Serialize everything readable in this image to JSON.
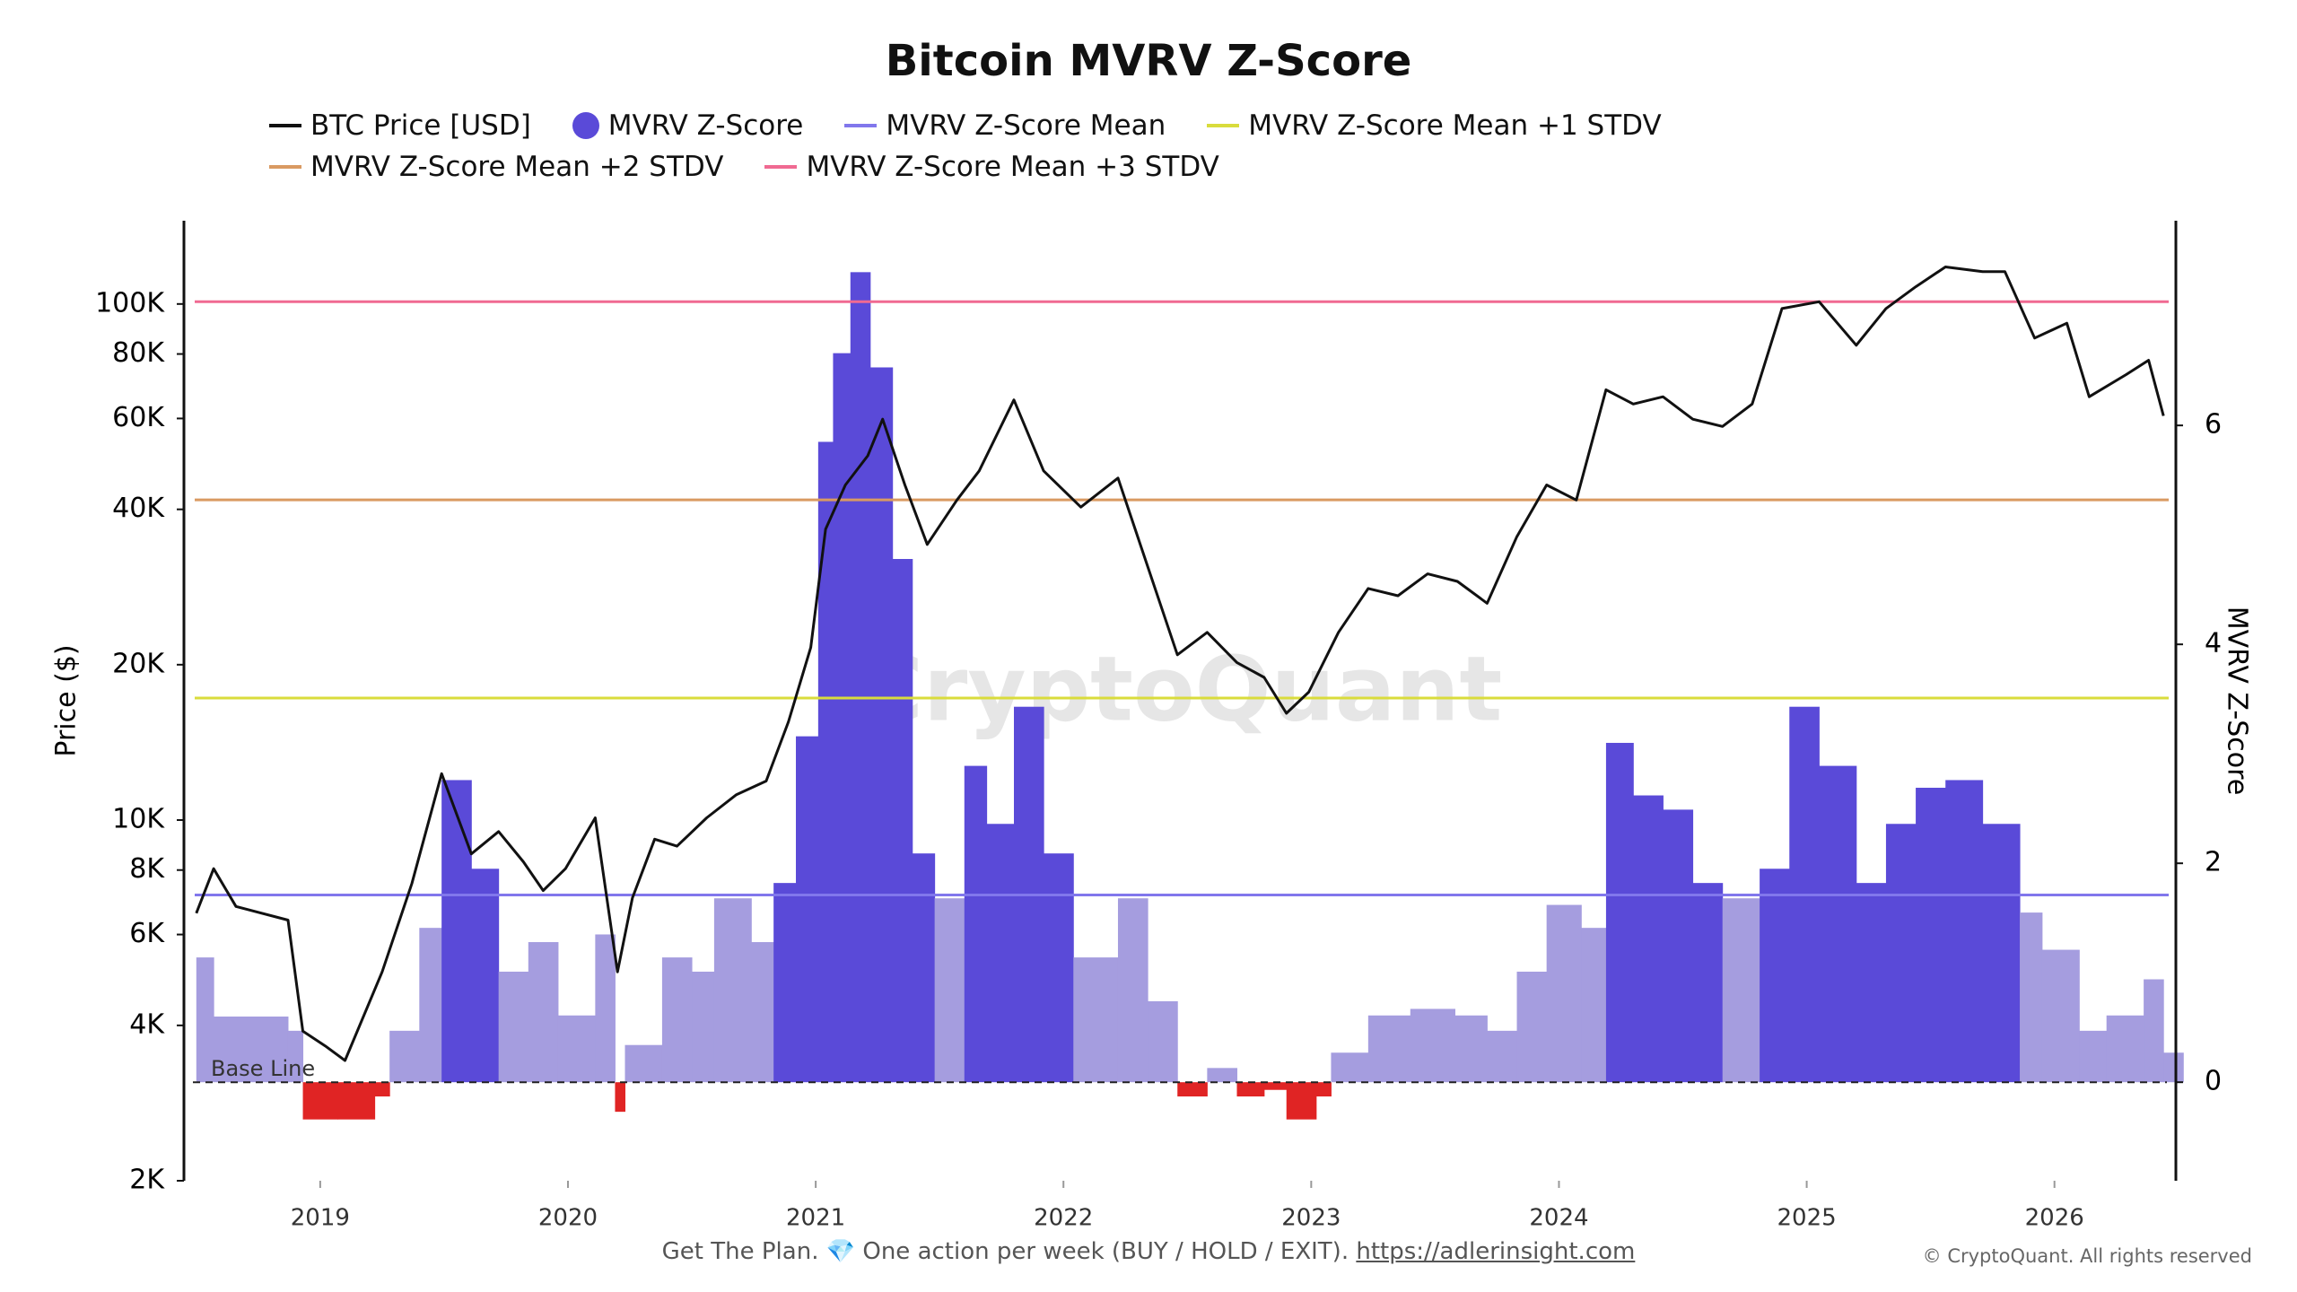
{
  "chart_data": {
    "type": "line",
    "title": "Bitcoin MVRV Z-Score",
    "y_label": "Price ($)",
    "y2_label": "MVRV Z-Score",
    "watermark": "CryptoQuant",
    "baseline_label": "Base Line",
    "footer_text": "Get The Plan. 💎 One action per week (BUY / HOLD / EXIT).",
    "footer_link": "https://adlerinsight.com",
    "copyright": "© CryptoQuant. All rights reserved",
    "log_y": true,
    "xlim": [
      2018.45,
      2026.49
    ],
    "xticks": [
      2019,
      2020,
      2021,
      2022,
      2023,
      2024,
      2025,
      2026
    ],
    "ylim": [
      2000,
      145000
    ],
    "yticks": [
      {
        "value": 2000,
        "label": "2K"
      },
      {
        "value": 4000,
        "label": "4K"
      },
      {
        "value": 6000,
        "label": "6K"
      },
      {
        "value": 8000,
        "label": "8K"
      },
      {
        "value": 10000,
        "label": "10K"
      },
      {
        "value": 20000,
        "label": "20K"
      },
      {
        "value": 40000,
        "label": "40K"
      },
      {
        "value": 60000,
        "label": "60K"
      },
      {
        "value": 80000,
        "label": "80K"
      },
      {
        "value": 100000,
        "label": "100K"
      }
    ],
    "y2lim": [
      -0.9,
      7.87
    ],
    "y2ticks": [
      0,
      2,
      4,
      6
    ],
    "series": [
      {
        "name": "BTC Price [USD]",
        "style": "line",
        "color": "#111111",
        "x": [
          2018.5,
          2018.57,
          2018.66,
          2018.87,
          2018.93,
          2019.02,
          2019.1,
          2019.25,
          2019.37,
          2019.49,
          2019.61,
          2019.72,
          2019.82,
          2019.9,
          2019.99,
          2020.11,
          2020.2,
          2020.26,
          2020.35,
          2020.44,
          2020.56,
          2020.68,
          2020.8,
          2020.89,
          2020.98,
          2021.04,
          2021.12,
          2021.21,
          2021.27,
          2021.36,
          2021.45,
          2021.57,
          2021.66,
          2021.8,
          2021.92,
          2022.07,
          2022.22,
          2022.34,
          2022.46,
          2022.58,
          2022.7,
          2022.81,
          2022.9,
          2022.99,
          2023.11,
          2023.23,
          2023.35,
          2023.47,
          2023.59,
          2023.71,
          2023.83,
          2023.95,
          2024.07,
          2024.19,
          2024.3,
          2024.42,
          2024.54,
          2024.66,
          2024.78,
          2024.9,
          2025.05,
          2025.2,
          2025.32,
          2025.44,
          2025.56,
          2025.71,
          2025.8,
          2025.92,
          2026.05,
          2026.14,
          2026.29,
          2026.38,
          2026.44
        ],
        "values": [
          6600,
          8050,
          6800,
          6400,
          3900,
          3650,
          3420,
          5080,
          7530,
          12300,
          8600,
          9500,
          8300,
          7300,
          8050,
          10100,
          5080,
          7060,
          9180,
          8900,
          10100,
          11200,
          11900,
          15500,
          21600,
          36600,
          44600,
          50800,
          59800,
          44600,
          34200,
          41700,
          47500,
          65200,
          47500,
          40400,
          46000,
          31000,
          20900,
          23100,
          20200,
          18900,
          16100,
          17700,
          23100,
          28100,
          27200,
          30000,
          29000,
          26300,
          35400,
          44600,
          41700,
          68200,
          64000,
          66100,
          59800,
          57900,
          64000,
          98000,
          101000,
          83200,
          98000,
          108000,
          118000,
          115500,
          115500,
          85900,
          91800,
          66100,
          73000,
          77800,
          60700
        ]
      },
      {
        "name": "MVRV Z-Score",
        "style": "area",
        "axis": "y2",
        "color": "#5a4ad8",
        "low_color": "#a59ddf",
        "negative_color": "#e02424",
        "x": [
          2018.5,
          2018.57,
          2018.72,
          2018.87,
          2018.93,
          2019.07,
          2019.22,
          2019.28,
          2019.4,
          2019.49,
          2019.61,
          2019.72,
          2019.84,
          2019.96,
          2020.11,
          2020.19,
          2020.23,
          2020.38,
          2020.5,
          2020.59,
          2020.74,
          2020.83,
          2020.92,
          2021.01,
          2021.07,
          2021.14,
          2021.22,
          2021.31,
          2021.39,
          2021.48,
          2021.6,
          2021.69,
          2021.8,
          2021.92,
          2022.04,
          2022.22,
          2022.34,
          2022.46,
          2022.58,
          2022.7,
          2022.81,
          2022.9,
          2023.02,
          2023.08,
          2023.23,
          2023.4,
          2023.58,
          2023.71,
          2023.83,
          2023.95,
          2024.09,
          2024.19,
          2024.3,
          2024.42,
          2024.54,
          2024.66,
          2024.81,
          2024.93,
          2025.05,
          2025.2,
          2025.32,
          2025.44,
          2025.56,
          2025.71,
          2025.86,
          2025.95,
          2026.1,
          2026.21,
          2026.36,
          2026.44
        ],
        "values": [
          1.14,
          0.6,
          0.6,
          0.47,
          -0.34,
          -0.34,
          -0.13,
          0.47,
          1.41,
          2.76,
          1.95,
          1.01,
          1.28,
          0.61,
          1.35,
          -0.27,
          0.34,
          1.14,
          1.01,
          1.68,
          1.28,
          1.82,
          3.16,
          5.85,
          6.66,
          7.4,
          6.53,
          4.78,
          2.09,
          1.68,
          2.89,
          2.36,
          3.43,
          2.09,
          1.14,
          1.68,
          0.74,
          -0.13,
          0.13,
          -0.13,
          -0.07,
          -0.34,
          -0.13,
          0.27,
          0.61,
          0.67,
          0.61,
          0.47,
          1.01,
          1.62,
          1.41,
          3.1,
          2.62,
          2.49,
          1.82,
          1.68,
          1.95,
          3.43,
          2.89,
          1.82,
          2.36,
          2.69,
          2.76,
          2.36,
          1.55,
          1.21,
          0.47,
          0.61,
          0.94,
          0.27
        ]
      },
      {
        "name": "MVRV Z-Score Mean",
        "style": "hline",
        "axis": "y2",
        "color": "#8177ec",
        "value": 1.71
      },
      {
        "name": "MVRV Z-Score Mean +1 STDV",
        "style": "hline",
        "axis": "y2",
        "color": "#d9dc3c",
        "value": 3.51
      },
      {
        "name": "MVRV Z-Score Mean +2 STDV",
        "style": "hline",
        "axis": "y2",
        "color": "#d99a62",
        "value": 5.32
      },
      {
        "name": "MVRV Z-Score Mean +3 STDV",
        "style": "hline",
        "axis": "y2",
        "color": "#f06a92",
        "value": 7.13
      }
    ]
  }
}
